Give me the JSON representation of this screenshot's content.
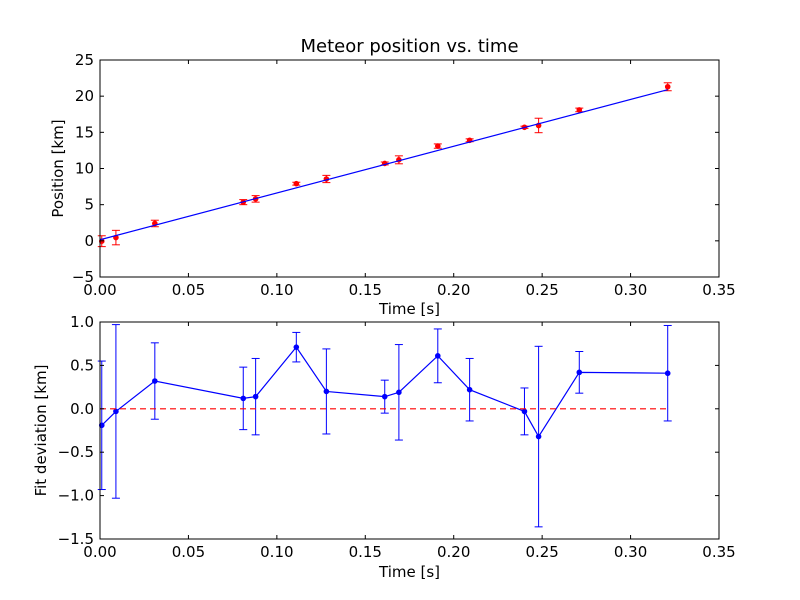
{
  "chart_data": [
    {
      "type": "scatter",
      "title": "Meteor position vs. time",
      "xlabel": "Time [s]",
      "ylabel": "Position [km]",
      "xlim": [
        0.0,
        0.35
      ],
      "ylim": [
        -5,
        25
      ],
      "xticks": [
        "0.00",
        "0.05",
        "0.10",
        "0.15",
        "0.20",
        "0.25",
        "0.30",
        "0.35"
      ],
      "yticks": [
        "−5",
        "0",
        "5",
        "10",
        "15",
        "20",
        "25"
      ],
      "grid": false,
      "series": [
        {
          "kind": "points-with-error",
          "color": "#ff0000",
          "x": [
            0.001,
            0.009,
            0.031,
            0.081,
            0.088,
            0.111,
            0.128,
            0.161,
            0.169,
            0.191,
            0.209,
            0.24,
            0.248,
            0.271,
            0.321
          ],
          "y": [
            -0.05,
            0.45,
            2.4,
            5.35,
            5.8,
            7.9,
            8.55,
            10.7,
            11.2,
            13.1,
            13.9,
            15.7,
            15.95,
            18.1,
            21.3
          ],
          "yerr": [
            0.75,
            1.0,
            0.45,
            0.35,
            0.45,
            0.2,
            0.5,
            0.2,
            0.55,
            0.3,
            0.2,
            0.15,
            1.0,
            0.25,
            0.55
          ]
        },
        {
          "kind": "fit-line",
          "color": "#0000ff",
          "x": [
            0.0,
            0.321
          ],
          "y": [
            0.15,
            20.9
          ]
        }
      ]
    },
    {
      "type": "line",
      "title": "",
      "xlabel": "Time [s]",
      "ylabel": "Fit deviation [km]",
      "xlim": [
        0.0,
        0.35
      ],
      "ylim": [
        -1.5,
        1.0
      ],
      "xticks": [
        "0.00",
        "0.05",
        "0.10",
        "0.15",
        "0.20",
        "0.25",
        "0.30",
        "0.35"
      ],
      "yticks": [
        "−1.5",
        "−1.0",
        "−0.5",
        "0.0",
        "0.5",
        "1.0"
      ],
      "grid": false,
      "series": [
        {
          "kind": "line-with-error",
          "color": "#0000ff",
          "x": [
            0.001,
            0.009,
            0.031,
            0.081,
            0.088,
            0.111,
            0.128,
            0.161,
            0.169,
            0.191,
            0.209,
            0.24,
            0.248,
            0.271,
            0.321
          ],
          "y": [
            -0.19,
            -0.03,
            0.32,
            0.12,
            0.14,
            0.71,
            0.2,
            0.14,
            0.19,
            0.61,
            0.22,
            -0.03,
            -0.32,
            0.42,
            0.41
          ],
          "yerr": [
            0.74,
            1.0,
            0.44,
            0.36,
            0.44,
            0.17,
            0.49,
            0.19,
            0.55,
            0.31,
            0.36,
            0.27,
            1.04,
            0.24,
            0.55
          ]
        },
        {
          "kind": "zero-line",
          "color": "#ff0000",
          "x": [
            0.0,
            0.321
          ],
          "y": [
            0.0,
            0.0
          ]
        }
      ]
    }
  ]
}
